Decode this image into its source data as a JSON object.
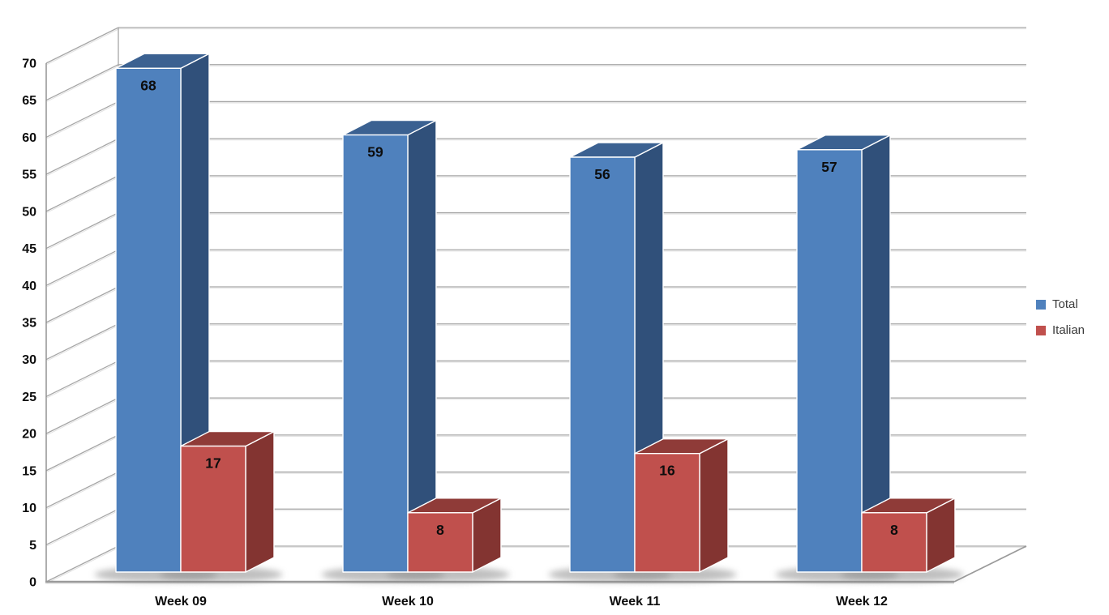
{
  "chart_data": {
    "type": "bar",
    "variant": "3d-clustered-column",
    "title": "",
    "xlabel": "",
    "ylabel": "",
    "categories": [
      "Week 09",
      "Week 10",
      "Week 11",
      "Week 12"
    ],
    "series": [
      {
        "name": "Total",
        "values": [
          68,
          59,
          56,
          57
        ],
        "color": "#4F81BD",
        "top_color": "#3B6191",
        "side_color": "#30507A"
      },
      {
        "name": "Italian",
        "values": [
          17,
          8,
          16,
          8
        ],
        "color": "#C0504D",
        "top_color": "#8F3B38",
        "side_color": "#833431"
      }
    ],
    "ylim": [
      0,
      70
    ],
    "y_ticks": [
      0,
      5,
      10,
      15,
      20,
      25,
      30,
      35,
      40,
      45,
      50,
      55,
      60,
      65,
      70
    ],
    "grid": true,
    "data_labels": true,
    "legend_position": "right",
    "background_color": "#ffffff",
    "gridline_color": "#a6a6a6",
    "axis_text_color": "#0d0d0d"
  }
}
